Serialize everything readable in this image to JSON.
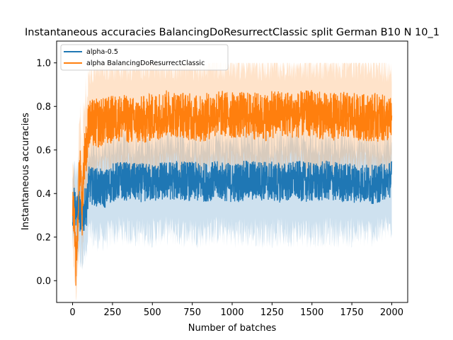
{
  "chart_data": {
    "type": "line",
    "title": "Instantaneous accuracies BalancingDoResurrectClassic split German B10 N 10_1",
    "xlabel": "Number of batches",
    "ylabel": "Instantaneous accuracies",
    "xlim": [
      -100,
      2100
    ],
    "ylim": [
      -0.1,
      1.1
    ],
    "xticks": [
      0,
      250,
      500,
      750,
      1000,
      1250,
      1500,
      1750,
      2000
    ],
    "yticks": [
      0.0,
      0.2,
      0.4,
      0.6,
      0.8,
      1.0
    ],
    "grid": false,
    "legend_position": "upper-left",
    "series": [
      {
        "name": "alpha-0.5",
        "color": "#1f77b4",
        "x": [
          0,
          10,
          20,
          30,
          40,
          50,
          60,
          70,
          80,
          90,
          100,
          150,
          200,
          250,
          300,
          400,
          500,
          600,
          700,
          800,
          900,
          1000,
          1100,
          1200,
          1300,
          1400,
          1500,
          1600,
          1700,
          1800,
          1900,
          2000
        ],
        "mean": [
          0.3,
          0.38,
          0.33,
          0.3,
          0.36,
          0.28,
          0.33,
          0.3,
          0.35,
          0.34,
          0.44,
          0.43,
          0.42,
          0.45,
          0.46,
          0.45,
          0.45,
          0.46,
          0.46,
          0.45,
          0.46,
          0.45,
          0.46,
          0.46,
          0.45,
          0.46,
          0.45,
          0.46,
          0.45,
          0.45,
          0.44,
          0.47
        ],
        "upper": [
          0.45,
          0.52,
          0.5,
          0.5,
          0.52,
          0.46,
          0.5,
          0.5,
          0.52,
          0.52,
          0.6,
          0.6,
          0.6,
          0.62,
          0.63,
          0.62,
          0.62,
          0.63,
          0.63,
          0.63,
          0.63,
          0.63,
          0.64,
          0.63,
          0.63,
          0.63,
          0.63,
          0.63,
          0.63,
          0.63,
          0.62,
          0.63
        ],
        "lower": [
          0.15,
          0.2,
          0.15,
          0.12,
          0.15,
          0.1,
          0.12,
          0.1,
          0.12,
          0.12,
          0.22,
          0.2,
          0.2,
          0.22,
          0.23,
          0.22,
          0.22,
          0.23,
          0.22,
          0.22,
          0.23,
          0.22,
          0.22,
          0.22,
          0.22,
          0.22,
          0.22,
          0.22,
          0.22,
          0.22,
          0.22,
          0.25
        ]
      },
      {
        "name": "alpha BalancingDoResurrectClassic",
        "color": "#ff7f0e",
        "x": [
          0,
          10,
          20,
          30,
          40,
          50,
          60,
          70,
          80,
          90,
          100,
          150,
          200,
          250,
          300,
          400,
          500,
          600,
          700,
          800,
          900,
          1000,
          1100,
          1200,
          1300,
          1400,
          1500,
          1600,
          1700,
          1800,
          1900,
          2000
        ],
        "mean": [
          0.35,
          0.3,
          0.05,
          0.2,
          0.45,
          0.55,
          0.3,
          0.55,
          0.6,
          0.62,
          0.72,
          0.72,
          0.73,
          0.74,
          0.75,
          0.73,
          0.75,
          0.77,
          0.76,
          0.74,
          0.77,
          0.76,
          0.76,
          0.75,
          0.77,
          0.76,
          0.77,
          0.75,
          0.76,
          0.75,
          0.75,
          0.74
        ],
        "upper": [
          0.55,
          0.5,
          0.3,
          0.45,
          0.65,
          0.75,
          0.55,
          0.8,
          0.85,
          0.88,
          0.95,
          1.0,
          1.0,
          1.0,
          1.0,
          1.0,
          1.0,
          1.0,
          1.0,
          1.0,
          1.0,
          1.0,
          1.0,
          1.0,
          1.0,
          1.0,
          1.0,
          1.0,
          1.0,
          1.0,
          1.0,
          0.98
        ],
        "lower": [
          0.15,
          0.1,
          -0.05,
          0.0,
          0.2,
          0.3,
          0.1,
          0.3,
          0.35,
          0.38,
          0.45,
          0.48,
          0.5,
          0.5,
          0.52,
          0.5,
          0.5,
          0.52,
          0.52,
          0.5,
          0.52,
          0.52,
          0.52,
          0.5,
          0.52,
          0.52,
          0.52,
          0.5,
          0.52,
          0.52,
          0.5,
          0.52
        ]
      }
    ]
  }
}
